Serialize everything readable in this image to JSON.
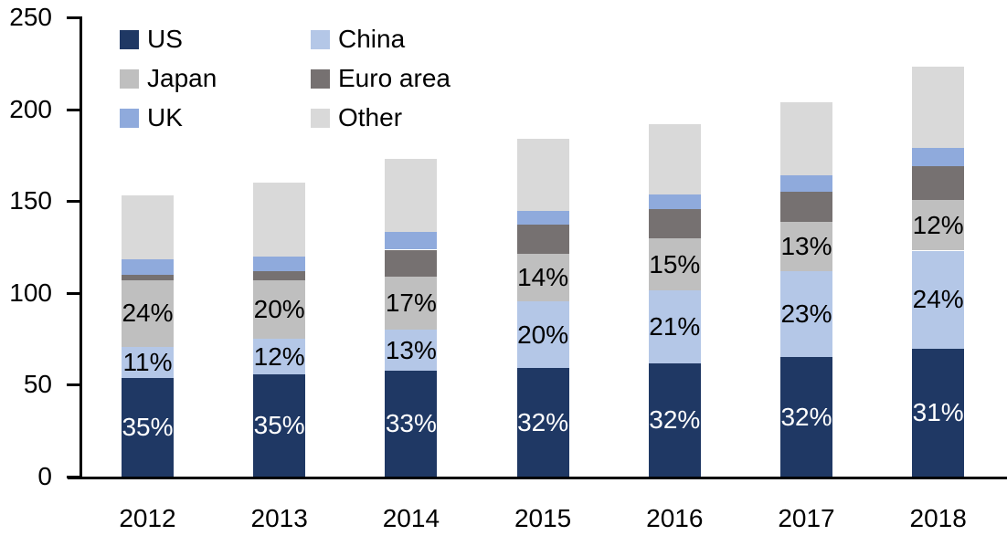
{
  "chart_data": {
    "type": "bar",
    "stacked": true,
    "title": "",
    "xlabel": "",
    "ylabel": "",
    "categories": [
      "2012",
      "2013",
      "2014",
      "2015",
      "2016",
      "2017",
      "2018"
    ],
    "series": [
      {
        "name": "US",
        "color": "#1F3864",
        "values": [
          53.5,
          55.5,
          57.5,
          59,
          61.5,
          65,
          69.5
        ],
        "labels": [
          "35%",
          "35%",
          "33%",
          "32%",
          "32%",
          "32%",
          "31%"
        ],
        "label_color": "#FFFFFF"
      },
      {
        "name": "China",
        "color": "#B4C7E7",
        "values": [
          17,
          19.5,
          22.5,
          36.5,
          40,
          47,
          53.5
        ],
        "labels": [
          "11%",
          "12%",
          "13%",
          "20%",
          "21%",
          "23%",
          "24%"
        ],
        "label_color": "#000000"
      },
      {
        "name": "Japan",
        "color": "#BFBFBF",
        "values": [
          36.5,
          32,
          29,
          26,
          28,
          26.5,
          27.5
        ],
        "labels": [
          "24%",
          "20%",
          "17%",
          "14%",
          "15%",
          "13%",
          "12%"
        ],
        "label_color": "#000000"
      },
      {
        "name": "Euro area",
        "color": "#767171",
        "values": [
          3,
          5,
          14.5,
          15.5,
          16,
          16.5,
          18.5
        ],
        "labels": [
          "",
          "",
          "",
          "",
          "",
          "",
          ""
        ],
        "label_color": "#000000"
      },
      {
        "name": "UK",
        "color": "#8FAADC",
        "values": [
          8.5,
          8,
          9.5,
          7.5,
          8,
          9,
          10
        ],
        "labels": [
          "",
          "",
          "",
          "",
          "",
          "",
          ""
        ],
        "label_color": "#000000"
      },
      {
        "name": "Other",
        "color": "#D9D9D9",
        "values": [
          34.5,
          40,
          40,
          39.5,
          38.5,
          40,
          44
        ],
        "labels": [
          "",
          "",
          "",
          "",
          "",
          "",
          ""
        ],
        "label_color": "#000000"
      }
    ],
    "totals": [
      153,
      160,
      173,
      184,
      192,
      204,
      223
    ],
    "ylim": [
      0,
      250
    ],
    "yticks": [
      0,
      50,
      100,
      150,
      200,
      250
    ],
    "ytick_labels": [
      "0",
      "50",
      "100",
      "150",
      "200",
      "250"
    ],
    "grid": false,
    "legend_position": "top-left",
    "legend_rows": [
      [
        "US",
        "China"
      ],
      [
        "Japan",
        "Euro area"
      ],
      [
        "UK",
        "Other"
      ]
    ],
    "axis_color": "#000000",
    "background_color": "#FFFFFF"
  }
}
